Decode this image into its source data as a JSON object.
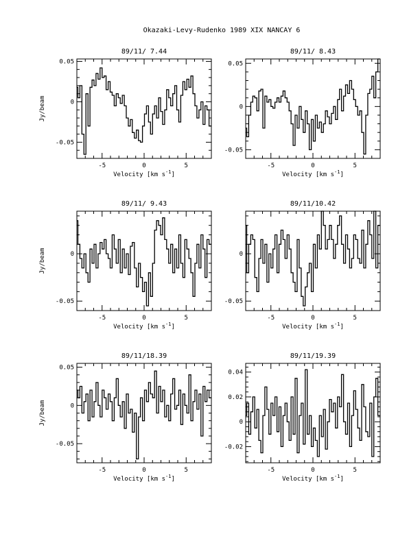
{
  "page_title": "Okazaki-Levy-Rudenko 1989 XIX   NANCAY     6",
  "chart_data": [
    {
      "type": "line",
      "step": true,
      "title": "89/11/ 7.44",
      "xlabel": "Velocity [km s",
      "xlabel_sup": "-1",
      "xlabel_end": "]",
      "ylabel": "Jy/beam",
      "xlim": [
        -8,
        8
      ],
      "ylim": [
        -0.07,
        0.053
      ],
      "xticks": [
        {
          "v": -5,
          "label": "-5"
        },
        {
          "v": 0,
          "label": "0"
        },
        {
          "v": 5,
          "label": "5"
        }
      ],
      "yticks": [
        {
          "v": -0.05,
          "label": "-0.05"
        },
        {
          "v": 0,
          "label": "0"
        },
        {
          "v": 0.05,
          "label": "0.05"
        }
      ],
      "x": [
        -8.0,
        -7.76,
        -7.52,
        -7.28,
        -7.04,
        -6.8,
        -6.56,
        -6.32,
        -6.08,
        -5.84,
        -5.6,
        -5.36,
        -5.12,
        -4.88,
        -4.64,
        -4.4,
        -4.16,
        -3.92,
        -3.68,
        -3.44,
        -3.2,
        -2.96,
        -2.72,
        -2.48,
        -2.24,
        -2.0,
        -1.76,
        -1.52,
        -1.28,
        -1.04,
        -0.8,
        -0.56,
        -0.32,
        -0.08,
        0.16,
        0.4,
        0.64,
        0.88,
        1.12,
        1.36,
        1.6,
        1.84,
        2.08,
        2.32,
        2.56,
        2.8,
        3.04,
        3.28,
        3.52,
        3.76,
        4.0,
        4.24,
        4.48,
        4.72,
        4.96,
        5.2,
        5.44,
        5.68,
        5.92,
        6.16,
        6.4,
        6.64,
        6.88,
        7.12,
        7.36,
        7.6,
        7.84
      ],
      "values": [
        0.018,
        0.005,
        0.02,
        -0.04,
        -0.065,
        0.01,
        -0.03,
        0.018,
        0.027,
        0.02,
        0.035,
        0.028,
        0.042,
        0.03,
        0.032,
        0.015,
        0.025,
        0.012,
        0.008,
        -0.005,
        0.01,
        0.005,
        -0.002,
        0.008,
        -0.005,
        -0.02,
        -0.03,
        -0.022,
        -0.038,
        -0.045,
        -0.035,
        -0.048,
        -0.05,
        -0.03,
        -0.015,
        -0.005,
        -0.025,
        -0.04,
        -0.015,
        -0.005,
        -0.02,
        0.005,
        -0.012,
        -0.028,
        -0.01,
        0.015,
        0.005,
        -0.005,
        0.01,
        0.02,
        -0.01,
        -0.025,
        0.008,
        0.025,
        0.015,
        0.028,
        0.018,
        0.032,
        0.01,
        -0.005,
        -0.02,
        -0.01,
        0.0,
        -0.028,
        -0.005,
        -0.01,
        -0.03
      ]
    },
    {
      "type": "line",
      "step": true,
      "title": "89/11/ 8.43",
      "xlabel": "Velocity [km s",
      "xlabel_sup": "-1",
      "xlabel_end": "]",
      "ylabel": "",
      "xlim": [
        -8,
        8
      ],
      "ylim": [
        -0.06,
        0.055
      ],
      "xticks": [
        {
          "v": -5,
          "label": "-5"
        },
        {
          "v": 0,
          "label": "0"
        },
        {
          "v": 5,
          "label": "5"
        }
      ],
      "yticks": [
        {
          "v": -0.05,
          "label": "-0.05"
        },
        {
          "v": 0,
          "label": "0"
        },
        {
          "v": 0.05,
          "label": "0.05"
        }
      ],
      "x": [
        -8.0,
        -7.76,
        -7.52,
        -7.28,
        -7.04,
        -6.8,
        -6.56,
        -6.32,
        -6.08,
        -5.84,
        -5.6,
        -5.36,
        -5.12,
        -4.88,
        -4.64,
        -4.4,
        -4.16,
        -3.92,
        -3.68,
        -3.44,
        -3.2,
        -2.96,
        -2.72,
        -2.48,
        -2.24,
        -2.0,
        -1.76,
        -1.52,
        -1.28,
        -1.04,
        -0.8,
        -0.56,
        -0.32,
        -0.08,
        0.16,
        0.4,
        0.64,
        0.88,
        1.12,
        1.36,
        1.6,
        1.84,
        2.08,
        2.32,
        2.56,
        2.8,
        3.04,
        3.28,
        3.52,
        3.76,
        4.0,
        4.24,
        4.48,
        4.72,
        4.96,
        5.2,
        5.44,
        5.68,
        5.92,
        6.16,
        6.4,
        6.64,
        6.88,
        7.12,
        7.36,
        7.6,
        7.84
      ],
      "values": [
        -0.025,
        -0.035,
        -0.01,
        0.005,
        0.012,
        0.01,
        -0.005,
        0.018,
        0.02,
        -0.025,
        0.012,
        0.005,
        0.008,
        0.0,
        -0.002,
        0.005,
        0.01,
        0.005,
        0.012,
        0.018,
        0.01,
        0.005,
        -0.005,
        -0.02,
        -0.045,
        -0.01,
        -0.025,
        0.0,
        -0.015,
        -0.03,
        -0.005,
        -0.02,
        -0.05,
        -0.015,
        -0.04,
        -0.01,
        -0.025,
        -0.018,
        -0.03,
        -0.02,
        -0.005,
        -0.012,
        -0.02,
        -0.008,
        0.0,
        -0.015,
        0.008,
        0.02,
        -0.005,
        0.012,
        0.025,
        0.015,
        0.03,
        0.02,
        0.008,
        0.0,
        -0.01,
        -0.005,
        -0.03,
        -0.055,
        -0.01,
        0.015,
        0.02,
        0.035,
        0.01,
        0.04,
        0.055
      ]
    },
    {
      "type": "line",
      "step": true,
      "title": "89/11/ 9.43",
      "xlabel": "Velocity [km s",
      "xlabel_sup": "-1",
      "xlabel_end": "]",
      "ylabel": "Jy/beam",
      "xlim": [
        -8,
        8
      ],
      "ylim": [
        -0.06,
        0.045
      ],
      "xticks": [
        {
          "v": -5,
          "label": "-5"
        },
        {
          "v": 0,
          "label": "0"
        },
        {
          "v": 5,
          "label": "5"
        }
      ],
      "yticks": [
        {
          "v": -0.05,
          "label": "-0.05"
        },
        {
          "v": 0,
          "label": "0"
        }
      ],
      "x": [
        -8.0,
        -7.76,
        -7.52,
        -7.28,
        -7.04,
        -6.8,
        -6.56,
        -6.32,
        -6.08,
        -5.84,
        -5.6,
        -5.36,
        -5.12,
        -4.88,
        -4.64,
        -4.4,
        -4.16,
        -3.92,
        -3.68,
        -3.44,
        -3.2,
        -2.96,
        -2.72,
        -2.48,
        -2.24,
        -2.0,
        -1.76,
        -1.52,
        -1.28,
        -1.04,
        -0.8,
        -0.56,
        -0.32,
        -0.08,
        0.16,
        0.4,
        0.64,
        0.88,
        1.12,
        1.36,
        1.6,
        1.84,
        2.08,
        2.32,
        2.56,
        2.8,
        3.04,
        3.28,
        3.52,
        3.76,
        4.0,
        4.24,
        4.48,
        4.72,
        4.96,
        5.2,
        5.44,
        5.68,
        5.92,
        6.16,
        6.4,
        6.64,
        6.88,
        7.12,
        7.36,
        7.6,
        7.84
      ],
      "values": [
        0.035,
        0.01,
        -0.005,
        -0.015,
        0.0,
        -0.02,
        -0.03,
        0.005,
        -0.01,
        0.01,
        -0.015,
        0.0,
        0.012,
        0.005,
        0.015,
        0.0,
        -0.005,
        -0.015,
        0.02,
        0.005,
        -0.01,
        0.015,
        -0.02,
        0.005,
        -0.015,
        0.0,
        -0.022,
        0.008,
        0.012,
        -0.015,
        -0.035,
        -0.01,
        -0.025,
        -0.04,
        -0.03,
        -0.055,
        -0.02,
        -0.045,
        -0.01,
        0.025,
        0.035,
        0.03,
        0.02,
        0.038,
        0.015,
        0.005,
        -0.01,
        0.01,
        -0.02,
        0.005,
        -0.015,
        0.02,
        -0.01,
        -0.025,
        0.015,
        0.005,
        -0.005,
        -0.02,
        -0.045,
        -0.01,
        0.01,
        -0.015,
        0.02,
        0.005,
        -0.025,
        0.015,
        0.01
      ]
    },
    {
      "type": "line",
      "step": true,
      "title": "89/11/10.42",
      "xlabel": "Velocity [km s",
      "xlabel_sup": "-1",
      "xlabel_end": "]",
      "ylabel": "",
      "xlim": [
        -8,
        8
      ],
      "ylim": [
        -0.06,
        0.045
      ],
      "xticks": [
        {
          "v": -5,
          "label": "-5"
        },
        {
          "v": 0,
          "label": "0"
        },
        {
          "v": 5,
          "label": "5"
        }
      ],
      "yticks": [
        {
          "v": -0.05,
          "label": "-0.05"
        },
        {
          "v": 0,
          "label": "0"
        }
      ],
      "x": [
        -8.0,
        -7.76,
        -7.52,
        -7.28,
        -7.04,
        -6.8,
        -6.56,
        -6.32,
        -6.08,
        -5.84,
        -5.6,
        -5.36,
        -5.12,
        -4.88,
        -4.64,
        -4.4,
        -4.16,
        -3.92,
        -3.68,
        -3.44,
        -3.2,
        -2.96,
        -2.72,
        -2.48,
        -2.24,
        -2.0,
        -1.76,
        -1.52,
        -1.28,
        -1.04,
        -0.8,
        -0.56,
        -0.32,
        -0.08,
        0.16,
        0.4,
        0.64,
        0.88,
        1.12,
        1.36,
        1.6,
        1.84,
        2.08,
        2.32,
        2.56,
        2.8,
        3.04,
        3.28,
        3.52,
        3.76,
        4.0,
        4.24,
        4.48,
        4.72,
        4.96,
        5.2,
        5.44,
        5.68,
        5.92,
        6.16,
        6.4,
        6.64,
        6.88,
        7.12,
        7.36,
        7.6,
        7.84
      ],
      "values": [
        0.03,
        -0.02,
        0.01,
        0.02,
        0.015,
        -0.025,
        -0.04,
        -0.005,
        0.015,
        -0.01,
        0.01,
        -0.03,
        0.0,
        -0.015,
        0.005,
        0.02,
        -0.02,
        0.01,
        0.025,
        0.015,
        -0.005,
        0.02,
        0.005,
        -0.02,
        -0.03,
        -0.04,
        0.015,
        -0.015,
        -0.045,
        -0.055,
        -0.035,
        -0.02,
        -0.01,
        -0.04,
        0.01,
        -0.015,
        0.02,
        0.005,
        0.045,
        0.03,
        0.005,
        0.015,
        0.03,
        0.015,
        -0.005,
        0.01,
        0.03,
        0.04,
        0.01,
        -0.01,
        0.02,
        0.005,
        -0.015,
        -0.005,
        0.02,
        0.015,
        -0.005,
        -0.01,
        0.025,
        -0.015,
        0.01,
        0.035,
        0.02,
        -0.005,
        0.045,
        -0.015,
        0.03
      ]
    },
    {
      "type": "line",
      "step": true,
      "title": "89/11/18.39",
      "xlabel": "Velocity [km s",
      "xlabel_sup": "-1",
      "xlabel_end": "]",
      "ylabel": "Jy/beam",
      "xlim": [
        -8,
        8
      ],
      "ylim": [
        -0.075,
        0.055
      ],
      "xticks": [
        {
          "v": -5,
          "label": "-5"
        },
        {
          "v": 0,
          "label": "0"
        },
        {
          "v": 5,
          "label": "5"
        }
      ],
      "yticks": [
        {
          "v": -0.05,
          "label": "-0.05"
        },
        {
          "v": 0,
          "label": "0"
        },
        {
          "v": 0.05,
          "label": "0.05"
        }
      ],
      "x": [
        -8.0,
        -7.76,
        -7.52,
        -7.28,
        -7.04,
        -6.8,
        -6.56,
        -6.32,
        -6.08,
        -5.84,
        -5.6,
        -5.36,
        -5.12,
        -4.88,
        -4.64,
        -4.4,
        -4.16,
        -3.92,
        -3.68,
        -3.44,
        -3.2,
        -2.96,
        -2.72,
        -2.48,
        -2.24,
        -2.0,
        -1.76,
        -1.52,
        -1.28,
        -1.04,
        -0.8,
        -0.56,
        -0.32,
        -0.08,
        0.16,
        0.4,
        0.64,
        0.88,
        1.12,
        1.36,
        1.6,
        1.84,
        2.08,
        2.32,
        2.56,
        2.8,
        3.04,
        3.28,
        3.52,
        3.76,
        4.0,
        4.24,
        4.48,
        4.72,
        4.96,
        5.2,
        5.44,
        5.68,
        5.92,
        6.16,
        6.4,
        6.64,
        6.88,
        7.12,
        7.36,
        7.6,
        7.84
      ],
      "values": [
        0.02,
        0.01,
        0.025,
        -0.01,
        0.005,
        0.015,
        -0.02,
        0.02,
        -0.015,
        0.005,
        0.03,
        0.0,
        -0.015,
        0.02,
        0.01,
        -0.005,
        0.015,
        0.005,
        -0.02,
        0.01,
        0.035,
        0.0,
        -0.015,
        0.005,
        -0.03,
        0.015,
        -0.01,
        -0.005,
        -0.035,
        -0.01,
        -0.07,
        -0.015,
        0.01,
        -0.02,
        0.02,
        0.005,
        0.03,
        0.015,
        0.01,
        0.045,
        -0.01,
        0.025,
        0.005,
        0.02,
        -0.015,
        0.0,
        -0.02,
        0.015,
        0.035,
        -0.005,
        0.0,
        0.02,
        -0.025,
        0.015,
        0.0,
        -0.01,
        0.04,
        -0.02,
        0.005,
        0.02,
        -0.005,
        0.015,
        -0.04,
        0.025,
        0.005,
        0.02,
        0.01
      ]
    },
    {
      "type": "line",
      "step": true,
      "title": "89/11/19.39",
      "xlabel": "Velocity [km s",
      "xlabel_sup": "-1",
      "xlabel_end": "]",
      "ylabel": "",
      "xlim": [
        -8,
        8
      ],
      "ylim": [
        -0.033,
        0.047
      ],
      "xticks": [
        {
          "v": -5,
          "label": "-5"
        },
        {
          "v": 0,
          "label": "0"
        },
        {
          "v": 5,
          "label": "5"
        }
      ],
      "yticks": [
        {
          "v": -0.02,
          "label": "-0.02"
        },
        {
          "v": 0,
          "label": "0"
        },
        {
          "v": 0.02,
          "label": "0.02"
        },
        {
          "v": 0.04,
          "label": "0.04"
        }
      ],
      "x": [
        -8.0,
        -7.76,
        -7.52,
        -7.28,
        -7.04,
        -6.8,
        -6.56,
        -6.32,
        -6.08,
        -5.84,
        -5.6,
        -5.36,
        -5.12,
        -4.88,
        -4.64,
        -4.4,
        -4.16,
        -3.92,
        -3.68,
        -3.44,
        -3.2,
        -2.96,
        -2.72,
        -2.48,
        -2.24,
        -2.0,
        -1.76,
        -1.52,
        -1.28,
        -1.04,
        -0.8,
        -0.56,
        -0.32,
        -0.08,
        0.16,
        0.4,
        0.64,
        0.88,
        1.12,
        1.36,
        1.6,
        1.84,
        2.08,
        2.32,
        2.56,
        2.8,
        3.04,
        3.28,
        3.52,
        3.76,
        4.0,
        4.24,
        4.48,
        4.72,
        4.96,
        5.2,
        5.44,
        5.68,
        5.92,
        6.16,
        6.4,
        6.64,
        6.88,
        7.12,
        7.36,
        7.6,
        7.84
      ],
      "values": [
        0.005,
        0.015,
        -0.01,
        0.008,
        0.02,
        -0.005,
        0.01,
        -0.015,
        -0.025,
        0.005,
        0.028,
        0.01,
        -0.01,
        0.015,
        0.005,
        0.02,
        -0.008,
        0.012,
        -0.02,
        0.005,
        0.015,
        0.0,
        -0.015,
        0.02,
        -0.01,
        0.035,
        -0.025,
        0.005,
        0.015,
        -0.018,
        0.042,
        -0.01,
        0.005,
        -0.02,
        -0.005,
        -0.015,
        -0.028,
        0.005,
        -0.012,
        0.01,
        -0.022,
        0.0,
        0.018,
        0.008,
        0.015,
        -0.005,
        0.02,
        0.012,
        0.038,
        0.0,
        -0.01,
        0.015,
        -0.02,
        0.005,
        0.025,
        0.01,
        -0.005,
        -0.015,
        0.03,
        0.012,
        -0.008,
        -0.012,
        0.015,
        -0.028,
        0.02,
        0.035,
        0.005
      ]
    }
  ]
}
